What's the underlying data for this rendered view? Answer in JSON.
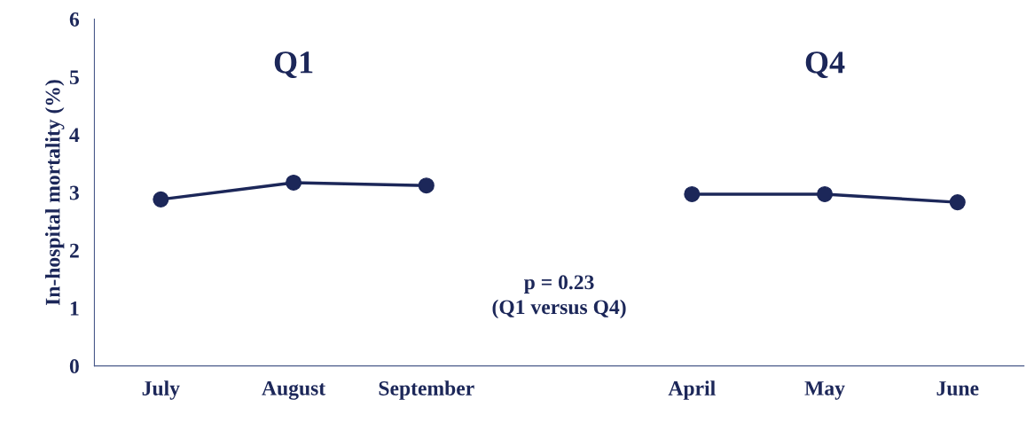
{
  "chart_data": {
    "type": "line",
    "ylabel": "In-hospital mortality (%)",
    "categories": [
      "July",
      "August",
      "September",
      null,
      "April",
      "May",
      "June"
    ],
    "series": [
      {
        "color": "#1c2759",
        "values": [
          2.88,
          3.17,
          3.12,
          null,
          2.97,
          2.97,
          2.83
        ]
      }
    ],
    "ylim": [
      0,
      6
    ],
    "yticks": [
      0,
      1,
      2,
      3,
      4,
      5,
      6
    ],
    "marker": "circle",
    "line_style": "solid",
    "grid": false,
    "legend": false,
    "annotations": [
      "Q1",
      "Q4",
      "p = 0.23\n(Q1 versus Q4)"
    ]
  }
}
